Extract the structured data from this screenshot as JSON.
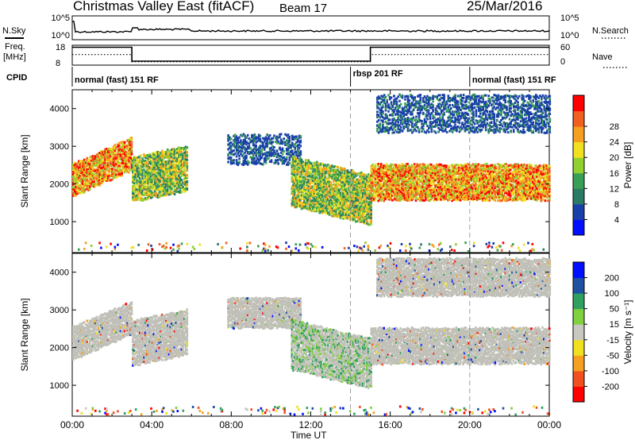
{
  "header": {
    "title": "Christmas Valley East (fitACF)",
    "beam": "Beam 17",
    "date": "25/Mar/2016"
  },
  "strips": {
    "nsky_label": "N.Sky",
    "nsky_ticks": [
      "10^5",
      "10^0"
    ],
    "nsearch_label": "N.Search",
    "nsearch_ticks": [
      "10^5",
      "10^0"
    ],
    "freq_label": "Freq.",
    "freq_unit": "[MHz]",
    "freq_ticks": [
      "18",
      "8"
    ],
    "nave_label": "Nave",
    "nave_ticks": [
      "60",
      "0"
    ],
    "cpid_label": "CPID",
    "cpid_segments": [
      {
        "label": "normal (fast) 151 RF",
        "start_h": 0,
        "end_h": 14
      },
      {
        "label": "rbsp 201 RF",
        "start_h": 14,
        "end_h": 20
      },
      {
        "label": "normal (fast) 151 RF",
        "start_h": 20,
        "end_h": 24
      }
    ],
    "freq_mhz": [
      {
        "start_h": 0,
        "end_h": 3,
        "value": 17
      },
      {
        "start_h": 3,
        "end_h": 15,
        "value": 10
      },
      {
        "start_h": 15,
        "end_h": 24,
        "value": 17
      }
    ],
    "nave": [
      {
        "start_h": 0,
        "end_h": 3,
        "value": 32
      },
      {
        "start_h": 3,
        "end_h": 15,
        "value": 10
      },
      {
        "start_h": 15,
        "end_h": 24,
        "value": 32
      }
    ]
  },
  "chart_data": [
    {
      "type": "heatmap",
      "parameter": "Power",
      "ylabel": "Slant Range [km]",
      "xlabel": "Time UT",
      "xlim_hours": [
        0,
        24
      ],
      "ylim_km": [
        180,
        4500
      ],
      "yticks": [
        "1000",
        "2000",
        "3000",
        "4000"
      ],
      "colorbar": {
        "label": "Power [dB]",
        "ticks": [
          "4",
          "8",
          "12",
          "16",
          "20",
          "24",
          "28"
        ],
        "range": [
          0,
          30
        ],
        "colors": [
          "#0010ff",
          "#1840a8",
          "#2a7a66",
          "#38a055",
          "#90d030",
          "#f0e020",
          "#f5a020",
          "#f06020",
          "#ff0000"
        ]
      },
      "regions": [
        {
          "t0": 0.0,
          "t1": 3.0,
          "r0": 1650,
          "r1": 2500,
          "rise_km": 700,
          "level": "strong"
        },
        {
          "t0": 3.0,
          "t1": 5.8,
          "r0": 1500,
          "r1": 2700,
          "rise_km": 300,
          "level": "moderate"
        },
        {
          "t0": 7.8,
          "t1": 11.5,
          "r0": 2500,
          "r1": 3300,
          "rise_km": 0,
          "level": "weak"
        },
        {
          "t0": 11.0,
          "t1": 15.0,
          "r0": 1400,
          "r1": 2700,
          "rise_km": -500,
          "level": "moderate"
        },
        {
          "t0": 15.0,
          "t1": 24.0,
          "r0": 1550,
          "r1": 2500,
          "rise_km": 0,
          "level": "strong"
        },
        {
          "t0": 15.3,
          "t1": 24.0,
          "r0": 3350,
          "r1": 4350,
          "rise_km": 0,
          "level": "weak"
        },
        {
          "t0": 0.0,
          "t1": 24.0,
          "r0": 180,
          "r1": 420,
          "rise_km": 0,
          "level": "noise"
        }
      ]
    },
    {
      "type": "heatmap",
      "parameter": "Velocity",
      "ylabel": "Slant Range [km]",
      "xlabel": "Time UT",
      "xlim_hours": [
        0,
        24
      ],
      "ylim_km": [
        180,
        4500
      ],
      "yticks": [
        "1000",
        "2000",
        "3000",
        "4000"
      ],
      "xticks": [
        "00:00",
        "04:00",
        "08:00",
        "12:00",
        "16:00",
        "20:00",
        "00:00"
      ],
      "colorbar": {
        "label": "Velocity [m s⁻¹]",
        "ticks": [
          "200",
          "100",
          "50",
          "15",
          "-15",
          "-50",
          "-100",
          "-200"
        ],
        "range": [
          -250,
          250
        ],
        "colors": [
          "#ff0000",
          "#f05020",
          "#f5a020",
          "#f0e020",
          "#c8c8c0",
          "#80d040",
          "#30a060",
          "#2050a0",
          "#0010ff"
        ]
      },
      "ground_scatter_color": "#c0c0b8",
      "regions": [
        {
          "t0": 0.0,
          "t1": 3.0,
          "r0": 1650,
          "r1": 2500,
          "rise_km": 700,
          "level": "gs"
        },
        {
          "t0": 3.0,
          "t1": 5.8,
          "r0": 1500,
          "r1": 2700,
          "rise_km": 300,
          "level": "gs"
        },
        {
          "t0": 7.8,
          "t1": 11.5,
          "r0": 2500,
          "r1": 3300,
          "rise_km": 0,
          "level": "gs"
        },
        {
          "t0": 11.0,
          "t1": 15.0,
          "r0": 1400,
          "r1": 2700,
          "rise_km": -500,
          "level": "mixed"
        },
        {
          "t0": 15.0,
          "t1": 24.0,
          "r0": 1550,
          "r1": 2500,
          "rise_km": 0,
          "level": "gs"
        },
        {
          "t0": 15.3,
          "t1": 24.0,
          "r0": 3350,
          "r1": 4350,
          "rise_km": 0,
          "level": "gs"
        },
        {
          "t0": 0.0,
          "t1": 24.0,
          "r0": 180,
          "r1": 420,
          "rise_km": 0,
          "level": "noise"
        }
      ]
    }
  ]
}
